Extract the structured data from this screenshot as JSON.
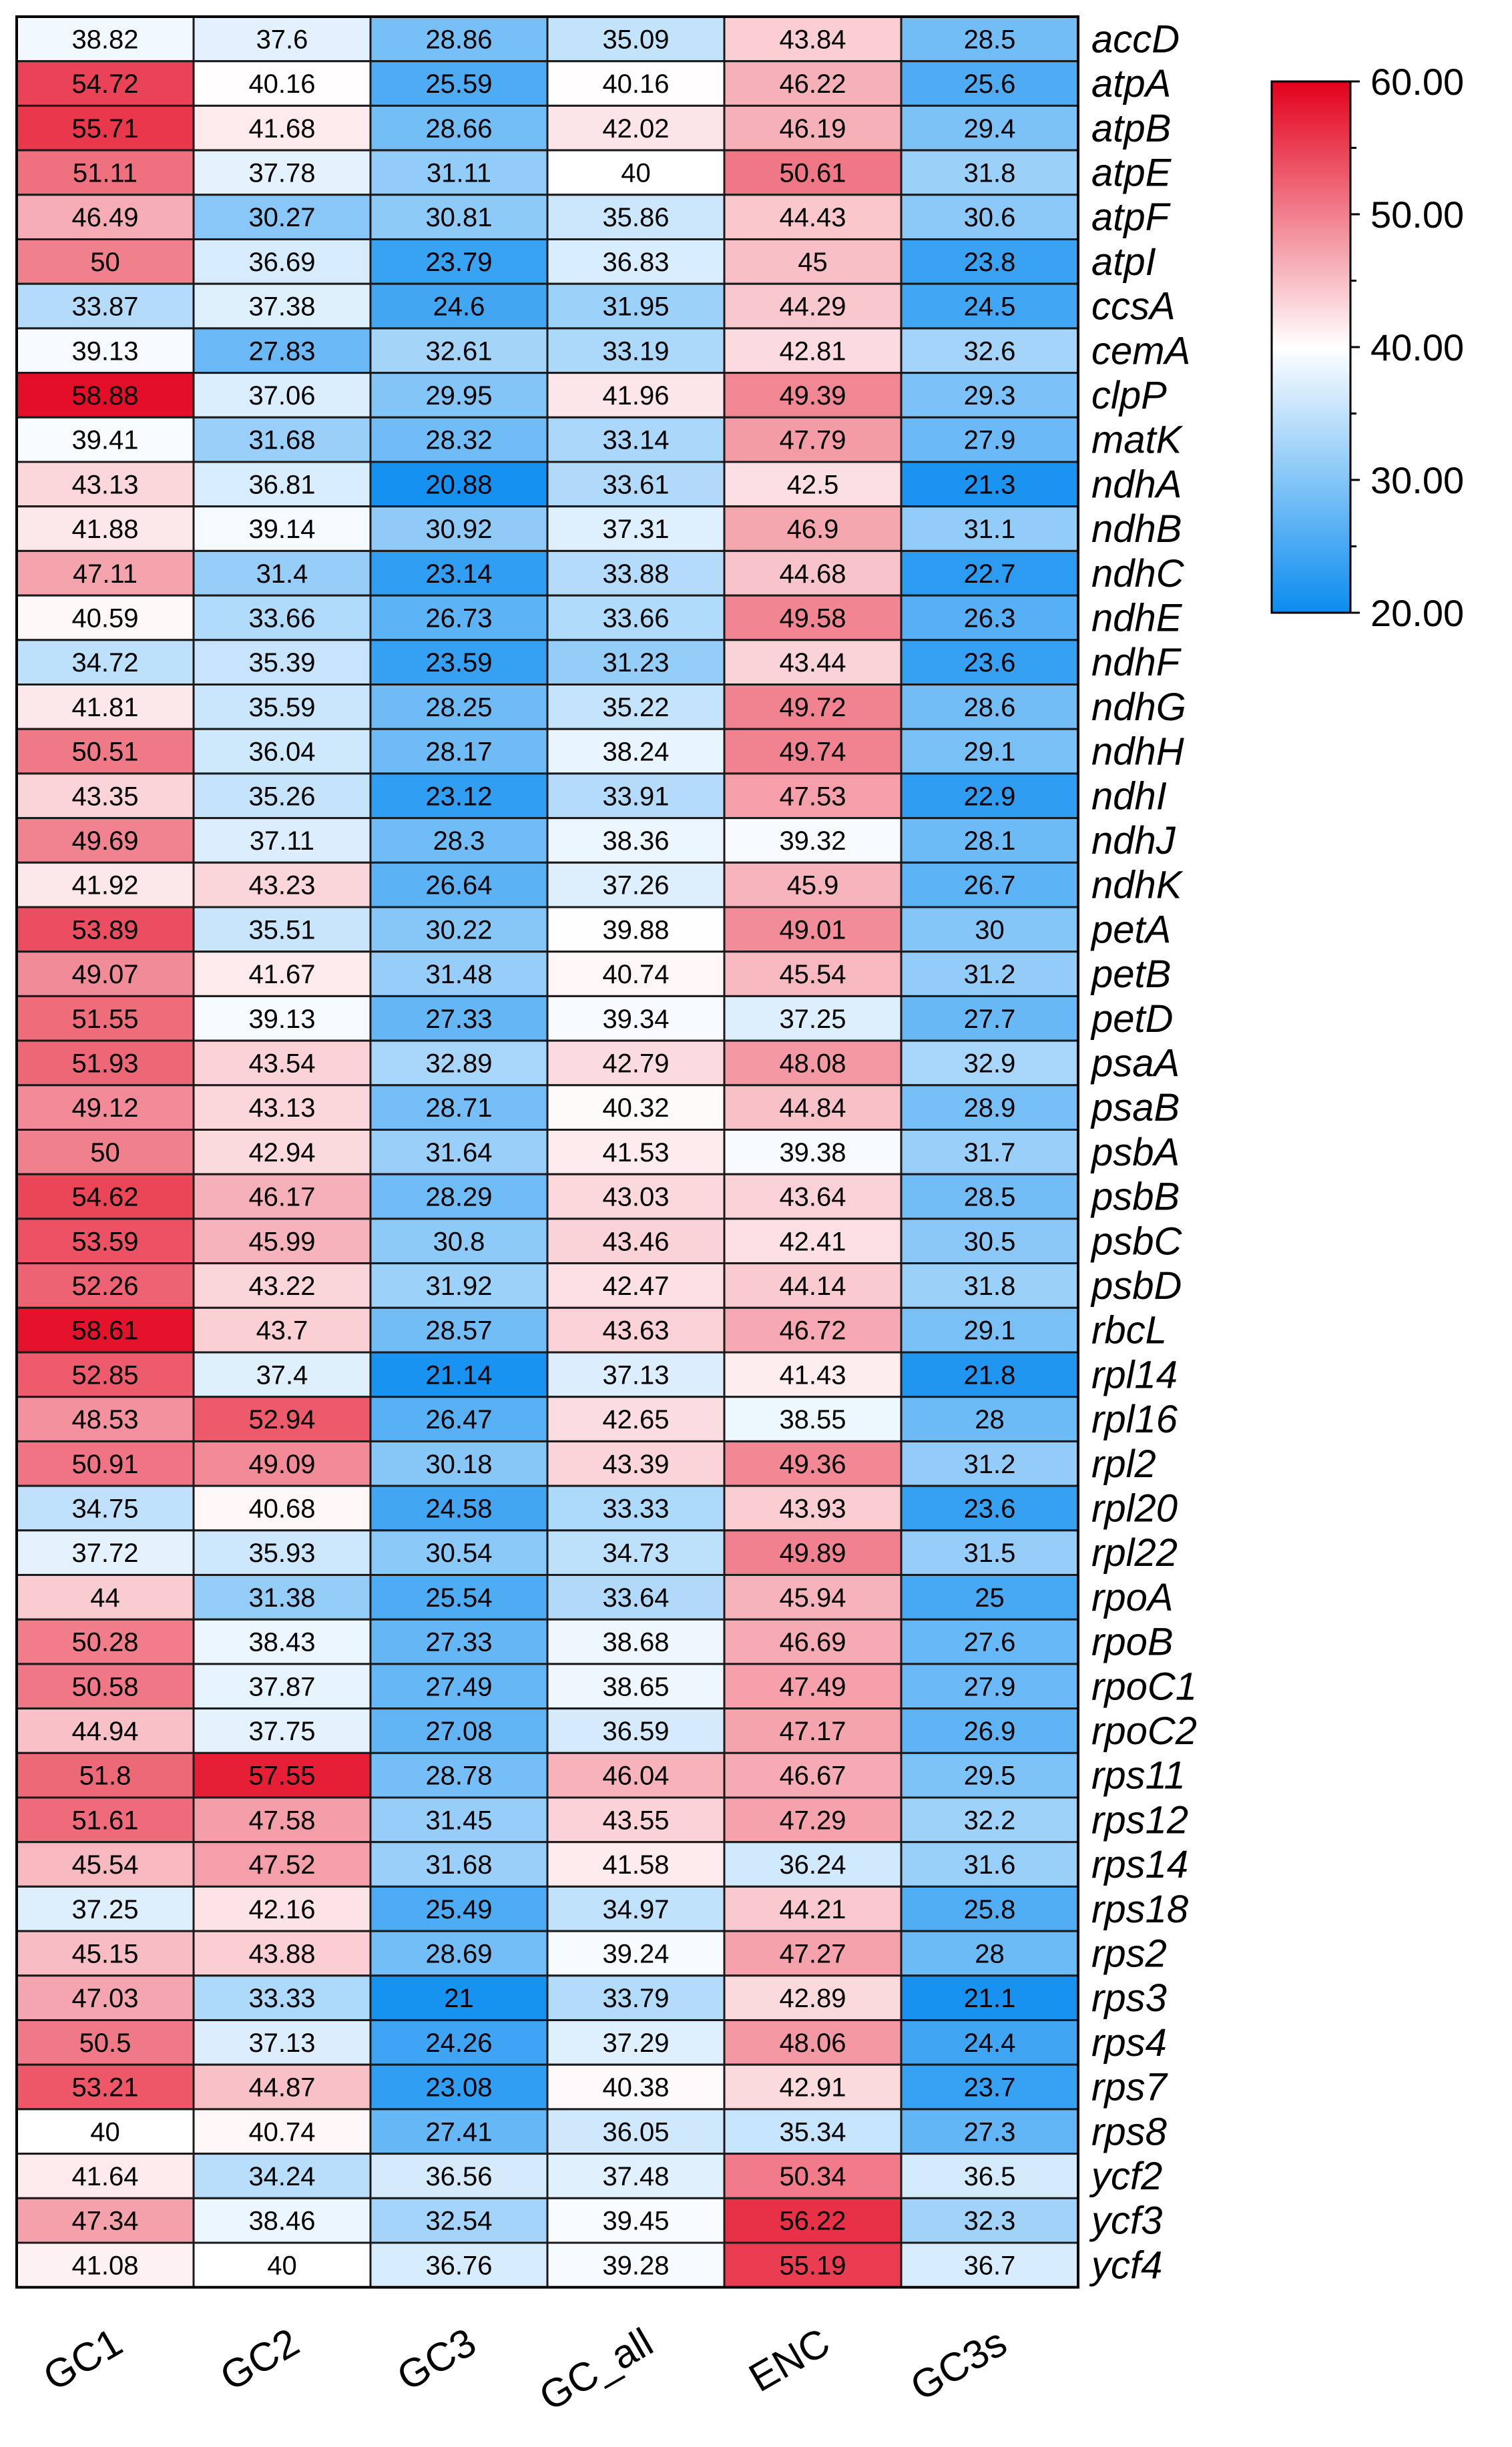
{
  "chart_data": {
    "type": "heatmap",
    "columns": [
      "GC1",
      "GC2",
      "GC3",
      "GC_all",
      "ENC",
      "GC3s"
    ],
    "rows": [
      "accD",
      "atpA",
      "atpB",
      "atpE",
      "atpF",
      "atpI",
      "ccsA",
      "cemA",
      "clpP",
      "matK",
      "ndhA",
      "ndhB",
      "ndhC",
      "ndhE",
      "ndhF",
      "ndhG",
      "ndhH",
      "ndhI",
      "ndhJ",
      "ndhK",
      "petA",
      "petB",
      "petD",
      "psaA",
      "psaB",
      "psbA",
      "psbB",
      "psbC",
      "psbD",
      "rbcL",
      "rpl14",
      "rpl16",
      "rpl2",
      "rpl20",
      "rpl22",
      "rpoA",
      "rpoB",
      "rpoC1",
      "rpoC2",
      "rps11",
      "rps12",
      "rps14",
      "rps18",
      "rps2",
      "rps3",
      "rps4",
      "rps7",
      "rps8",
      "ycf2",
      "ycf3",
      "ycf4"
    ],
    "values": [
      [
        "38.82",
        "37.6",
        "28.86",
        "35.09",
        "43.84",
        "28.5"
      ],
      [
        "54.72",
        "40.16",
        "25.59",
        "40.16",
        "46.22",
        "25.6"
      ],
      [
        "55.71",
        "41.68",
        "28.66",
        "42.02",
        "46.19",
        "29.4"
      ],
      [
        "51.11",
        "37.78",
        "31.11",
        "40",
        "50.61",
        "31.8"
      ],
      [
        "46.49",
        "30.27",
        "30.81",
        "35.86",
        "44.43",
        "30.6"
      ],
      [
        "50",
        "36.69",
        "23.79",
        "36.83",
        "45",
        "23.8"
      ],
      [
        "33.87",
        "37.38",
        "24.6",
        "31.95",
        "44.29",
        "24.5"
      ],
      [
        "39.13",
        "27.83",
        "32.61",
        "33.19",
        "42.81",
        "32.6"
      ],
      [
        "58.88",
        "37.06",
        "29.95",
        "41.96",
        "49.39",
        "29.3"
      ],
      [
        "39.41",
        "31.68",
        "28.32",
        "33.14",
        "47.79",
        "27.9"
      ],
      [
        "43.13",
        "36.81",
        "20.88",
        "33.61",
        "42.5",
        "21.3"
      ],
      [
        "41.88",
        "39.14",
        "30.92",
        "37.31",
        "46.9",
        "31.1"
      ],
      [
        "47.11",
        "31.4",
        "23.14",
        "33.88",
        "44.68",
        "22.7"
      ],
      [
        "40.59",
        "33.66",
        "26.73",
        "33.66",
        "49.58",
        "26.3"
      ],
      [
        "34.72",
        "35.39",
        "23.59",
        "31.23",
        "43.44",
        "23.6"
      ],
      [
        "41.81",
        "35.59",
        "28.25",
        "35.22",
        "49.72",
        "28.6"
      ],
      [
        "50.51",
        "36.04",
        "28.17",
        "38.24",
        "49.74",
        "29.1"
      ],
      [
        "43.35",
        "35.26",
        "23.12",
        "33.91",
        "47.53",
        "22.9"
      ],
      [
        "49.69",
        "37.11",
        "28.3",
        "38.36",
        "39.32",
        "28.1"
      ],
      [
        "41.92",
        "43.23",
        "26.64",
        "37.26",
        "45.9",
        "26.7"
      ],
      [
        "53.89",
        "35.51",
        "30.22",
        "39.88",
        "49.01",
        "30"
      ],
      [
        "49.07",
        "41.67",
        "31.48",
        "40.74",
        "45.54",
        "31.2"
      ],
      [
        "51.55",
        "39.13",
        "27.33",
        "39.34",
        "37.25",
        "27.7"
      ],
      [
        "51.93",
        "43.54",
        "32.89",
        "42.79",
        "48.08",
        "32.9"
      ],
      [
        "49.12",
        "43.13",
        "28.71",
        "40.32",
        "44.84",
        "28.9"
      ],
      [
        "50",
        "42.94",
        "31.64",
        "41.53",
        "39.38",
        "31.7"
      ],
      [
        "54.62",
        "46.17",
        "28.29",
        "43.03",
        "43.64",
        "28.5"
      ],
      [
        "53.59",
        "45.99",
        "30.8",
        "43.46",
        "42.41",
        "30.5"
      ],
      [
        "52.26",
        "43.22",
        "31.92",
        "42.47",
        "44.14",
        "31.8"
      ],
      [
        "58.61",
        "43.7",
        "28.57",
        "43.63",
        "46.72",
        "29.1"
      ],
      [
        "52.85",
        "37.4",
        "21.14",
        "37.13",
        "41.43",
        "21.8"
      ],
      [
        "48.53",
        "52.94",
        "26.47",
        "42.65",
        "38.55",
        "28"
      ],
      [
        "50.91",
        "49.09",
        "30.18",
        "43.39",
        "49.36",
        "31.2"
      ],
      [
        "34.75",
        "40.68",
        "24.58",
        "33.33",
        "43.93",
        "23.6"
      ],
      [
        "37.72",
        "35.93",
        "30.54",
        "34.73",
        "49.89",
        "31.5"
      ],
      [
        "44",
        "31.38",
        "25.54",
        "33.64",
        "45.94",
        "25"
      ],
      [
        "50.28",
        "38.43",
        "27.33",
        "38.68",
        "46.69",
        "27.6"
      ],
      [
        "50.58",
        "37.87",
        "27.49",
        "38.65",
        "47.49",
        "27.9"
      ],
      [
        "44.94",
        "37.75",
        "27.08",
        "36.59",
        "47.17",
        "26.9"
      ],
      [
        "51.8",
        "57.55",
        "28.78",
        "46.04",
        "46.67",
        "29.5"
      ],
      [
        "51.61",
        "47.58",
        "31.45",
        "43.55",
        "47.29",
        "32.2"
      ],
      [
        "45.54",
        "47.52",
        "31.68",
        "41.58",
        "36.24",
        "31.6"
      ],
      [
        "37.25",
        "42.16",
        "25.49",
        "34.97",
        "44.21",
        "25.8"
      ],
      [
        "45.15",
        "43.88",
        "28.69",
        "39.24",
        "47.27",
        "28"
      ],
      [
        "47.03",
        "33.33",
        "21",
        "33.79",
        "42.89",
        "21.1"
      ],
      [
        "50.5",
        "37.13",
        "24.26",
        "37.29",
        "48.06",
        "24.4"
      ],
      [
        "53.21",
        "44.87",
        "23.08",
        "40.38",
        "42.91",
        "23.7"
      ],
      [
        "40",
        "40.74",
        "27.41",
        "36.05",
        "35.34",
        "27.3"
      ],
      [
        "41.64",
        "34.24",
        "36.56",
        "37.48",
        "50.34",
        "36.5"
      ],
      [
        "47.34",
        "38.46",
        "32.54",
        "39.45",
        "56.22",
        "32.3"
      ],
      [
        "41.08",
        "40",
        "36.76",
        "39.28",
        "55.19",
        "36.7"
      ]
    ],
    "color_scale": {
      "min": 20,
      "mid": 40,
      "max": 60,
      "min_color": "#0a8cf0",
      "mid_color": "#ffffff",
      "max_color": "#e3001b",
      "ticks": [
        "60.00",
        "50.00",
        "40.00",
        "30.00",
        "20.00"
      ]
    },
    "legend_placement": "top-right"
  }
}
